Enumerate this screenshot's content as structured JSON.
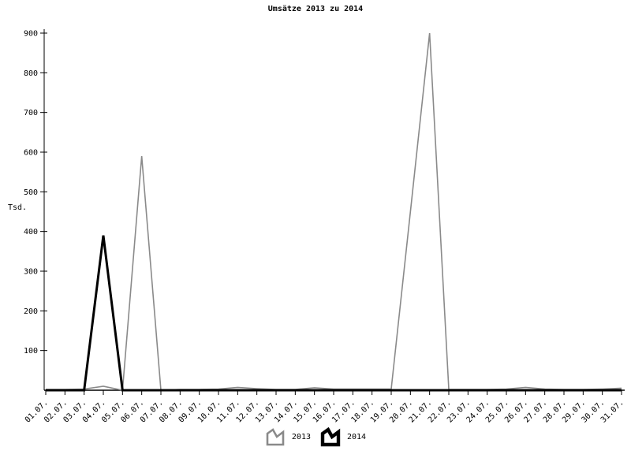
{
  "chart_data": {
    "type": "line",
    "title": "Umsätze 2013 zu 2014",
    "ylabel": "Tsd.",
    "xlabel": "",
    "ylim": [
      0,
      900
    ],
    "ytick_step": 100,
    "grid": false,
    "legend_position": "bottom-center",
    "categories": [
      "01.07.",
      "02.07.",
      "03.07.",
      "04.07.",
      "05.07.",
      "06.07.",
      "07.07.",
      "08.07.",
      "09.07.",
      "10.07.",
      "11.07.",
      "12.07.",
      "13.07.",
      "14.07.",
      "15.07.",
      "16.07.",
      "17.07.",
      "18.07.",
      "19.07.",
      "20.07.",
      "21.07.",
      "22.07.",
      "23.07.",
      "24.07.",
      "25.07.",
      "26.07.",
      "27.07.",
      "28.07.",
      "29.07.",
      "30.07.",
      "31.07."
    ],
    "series": [
      {
        "name": "2013",
        "color": "#8a8a8a",
        "line_width": 1.6,
        "values": [
          2,
          2,
          3,
          10,
          0,
          590,
          0,
          2,
          2,
          3,
          7,
          4,
          2,
          2,
          6,
          3,
          3,
          3,
          3,
          450,
          900,
          2,
          2,
          2,
          3,
          7,
          3,
          2,
          2,
          3,
          5
        ]
      },
      {
        "name": "2014",
        "color": "#000000",
        "line_width": 3,
        "values": [
          0,
          0,
          0,
          390,
          0,
          0,
          0,
          0,
          0,
          0,
          0,
          0,
          0,
          0,
          0,
          0,
          0,
          0,
          0,
          0,
          0,
          0,
          0,
          0,
          0,
          0,
          0,
          0,
          0,
          0,
          0
        ]
      }
    ]
  }
}
